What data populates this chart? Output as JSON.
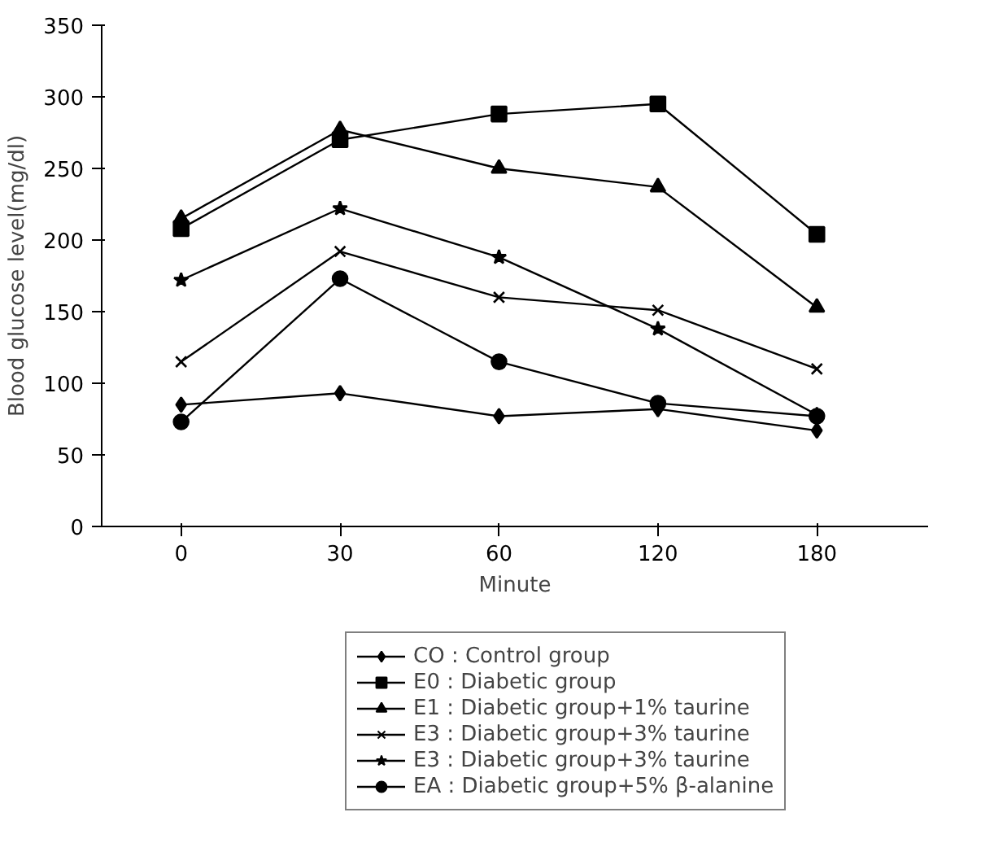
{
  "chart_data": {
    "type": "line",
    "xlabel": "Minute",
    "ylabel": "Blood glucose level(mg/dl)",
    "categories": [
      "0",
      "30",
      "60",
      "120",
      "180"
    ],
    "ylim": [
      0,
      350
    ],
    "yticks": [
      0,
      50,
      100,
      150,
      200,
      250,
      300,
      350
    ],
    "grid": false,
    "legend": "bottom",
    "line_style": "solid",
    "series": [
      {
        "name": "CO : Control group",
        "color": "#000000",
        "marker": "diamond",
        "values": [
          85,
          93,
          77,
          82,
          67
        ]
      },
      {
        "name": "E0 : Diabetic group",
        "color": "#000000",
        "marker": "square",
        "values": [
          208,
          270,
          288,
          295,
          204
        ]
      },
      {
        "name": "E1 : Diabetic group+1% taurine",
        "color": "#000000",
        "marker": "triangle",
        "values": [
          215,
          277,
          250,
          237,
          153
        ]
      },
      {
        "name": "E3 : Diabetic group+3% taurine",
        "color": "#000000",
        "marker": "cross",
        "values": [
          115,
          192,
          160,
          151,
          110
        ]
      },
      {
        "name": "E3 : Diabetic group+3% taurine",
        "color": "#000000",
        "marker": "star",
        "values": [
          172,
          222,
          188,
          138,
          78
        ]
      },
      {
        "name": "EA : Diabetic group+5% β-alanine",
        "color": "#000000",
        "marker": "circle",
        "values": [
          73,
          173,
          115,
          86,
          77
        ]
      }
    ]
  }
}
